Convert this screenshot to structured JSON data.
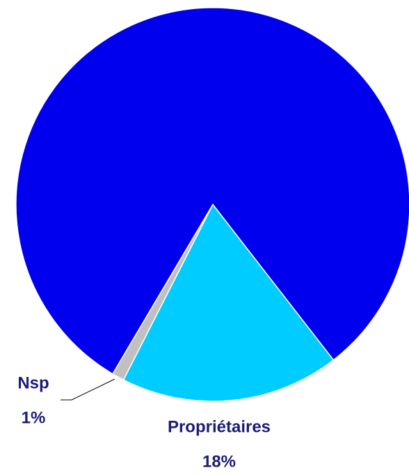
{
  "chart_data": {
    "type": "pie",
    "categories": [
      "Propriétaires",
      "Nsp",
      null
    ],
    "values": [
      18,
      1,
      81
    ],
    "value_labels": [
      "18%",
      "1%",
      null
    ],
    "colors": [
      "#00ccff",
      "#c0c0c0",
      "#0000ee"
    ]
  }
}
